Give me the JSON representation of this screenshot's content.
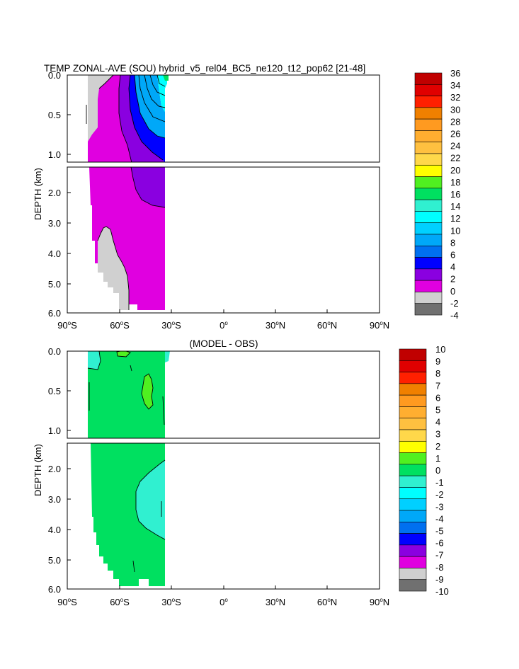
{
  "chart_data": [
    {
      "type": "contour",
      "title": "TEMP ZONAL-AVE (SOU) hybrid_v5_rel04_BC5_ne120_t12_pop62 [21-48]",
      "ylabel": "DEPTH (km)",
      "xlabel": "",
      "xlim": [
        -90,
        90
      ],
      "x_ticks": [
        {
          "base": "90",
          "hemi": "S"
        },
        {
          "base": "60",
          "hemi": "S"
        },
        {
          "base": "30",
          "hemi": "S"
        },
        {
          "base": "0",
          "hemi": ""
        },
        {
          "base": "30",
          "hemi": "N"
        },
        {
          "base": "60",
          "hemi": "N"
        },
        {
          "base": "90",
          "hemi": "N"
        }
      ],
      "upper_panel": {
        "ylim": [
          0,
          1.1
        ],
        "y_ticks": [
          "0.0",
          "0.5",
          "1.0"
        ]
      },
      "lower_panel": {
        "ylim": [
          1.1,
          6.0
        ],
        "y_ticks": [
          "2.0",
          "3.0",
          "4.0",
          "5.0",
          "6.0"
        ]
      },
      "colorbar": {
        "labels": [
          "36",
          "34",
          "32",
          "30",
          "28",
          "26",
          "24",
          "22",
          "20",
          "18",
          "16",
          "14",
          "12",
          "10",
          "8",
          "6",
          "4",
          "2",
          "0",
          "-2",
          "-4"
        ],
        "colors": [
          "#c00000",
          "#e00000",
          "#ff2000",
          "#f08000",
          "#ff9a20",
          "#ffae30",
          "#ffc040",
          "#ffd84a",
          "#ffff00",
          "#50f020",
          "#00e060",
          "#30f0d0",
          "#00ffff",
          "#00d0ff",
          "#00a8f8",
          "#0070f0",
          "#0000ff",
          "#8a00e0",
          "#e000e0",
          "#d0d0d0",
          "#707070"
        ]
      },
      "regions": [
        {
          "name": "ice-gray",
          "value": "<0"
        },
        {
          "name": "magenta",
          "value": "0 to 2"
        },
        {
          "name": "purple",
          "value": "2 to 4"
        },
        {
          "name": "blue",
          "value": "4 to 6"
        },
        {
          "name": "light-blue",
          "value": "6 to 12"
        },
        {
          "name": "cyan",
          "value": "12 to 16"
        }
      ]
    },
    {
      "type": "contour",
      "title": "(MODEL - OBS)",
      "ylabel": "DEPTH (km)",
      "xlabel": "",
      "xlim": [
        -90,
        90
      ],
      "x_ticks": [
        {
          "base": "90",
          "hemi": "S"
        },
        {
          "base": "60",
          "hemi": "S"
        },
        {
          "base": "30",
          "hemi": "S"
        },
        {
          "base": "0",
          "hemi": ""
        },
        {
          "base": "30",
          "hemi": "N"
        },
        {
          "base": "60",
          "hemi": "N"
        },
        {
          "base": "90",
          "hemi": "N"
        }
      ],
      "upper_panel": {
        "ylim": [
          0,
          1.1
        ],
        "y_ticks": [
          "0.0",
          "0.5",
          "1.0"
        ]
      },
      "lower_panel": {
        "ylim": [
          1.1,
          6.0
        ],
        "y_ticks": [
          "2.0",
          "3.0",
          "4.0",
          "5.0",
          "6.0"
        ]
      },
      "colorbar": {
        "labels": [
          "10",
          "9",
          "8",
          "7",
          "6",
          "5",
          "4",
          "3",
          "2",
          "1",
          "0",
          "-1",
          "-2",
          "-3",
          "-4",
          "-5",
          "-6",
          "-7",
          "-8",
          "-9",
          "-10"
        ],
        "colors": [
          "#c00000",
          "#e00000",
          "#ff2000",
          "#f08000",
          "#ff9a20",
          "#ffae30",
          "#ffc040",
          "#ffd84a",
          "#ffff00",
          "#50f020",
          "#00e060",
          "#30f0d0",
          "#00ffff",
          "#00d0ff",
          "#00a8f8",
          "#0070f0",
          "#0000ff",
          "#8a00e0",
          "#e000e0",
          "#d0d0d0",
          "#707070"
        ]
      },
      "regions": [
        {
          "name": "green",
          "value": "0 to 1"
        },
        {
          "name": "bright-green",
          "value": "1 to 2"
        },
        {
          "name": "pale-cyan",
          "value": "-1 to 0"
        }
      ]
    }
  ]
}
